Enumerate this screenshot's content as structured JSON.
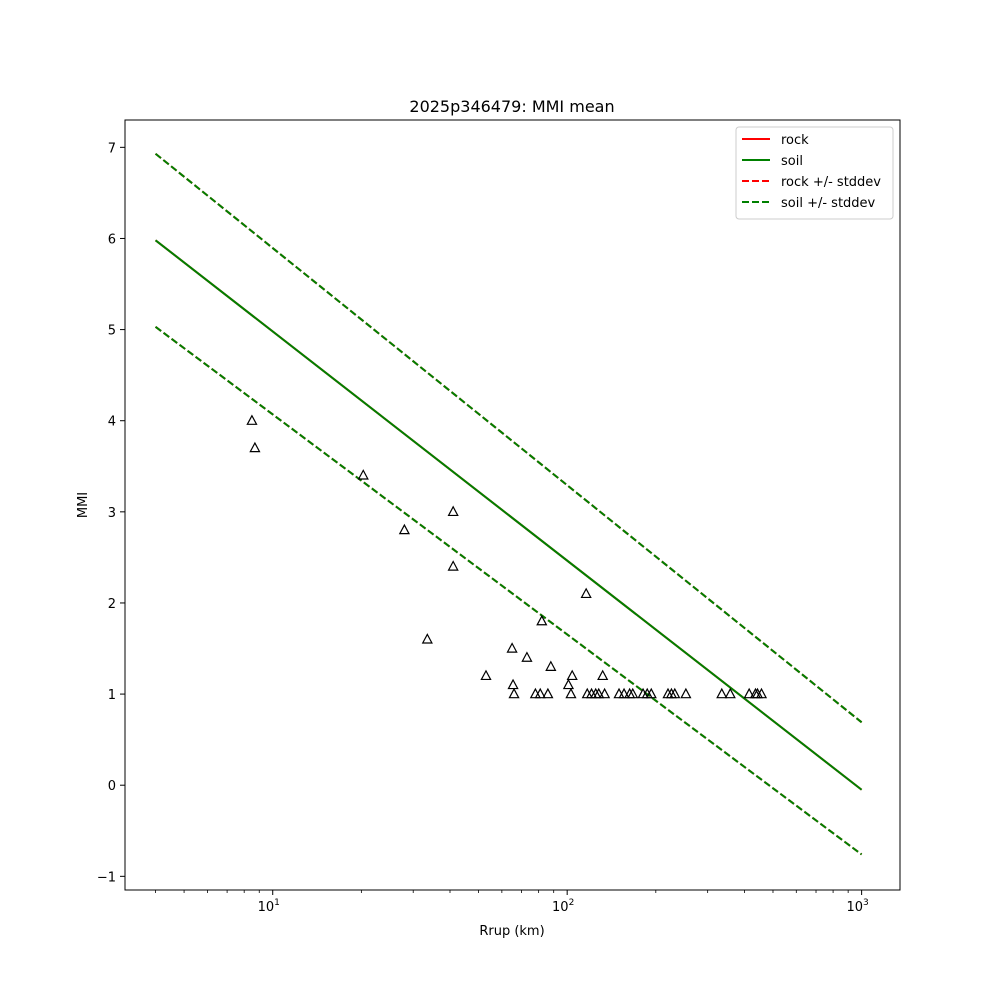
{
  "chart_data": {
    "type": "scatter",
    "title": "2025p346479: MMI mean",
    "xlabel": "Rrup (km)",
    "ylabel": "MMI",
    "xscale": "log",
    "xlim": [
      3.15,
      1350
    ],
    "ylim": [
      -1.15,
      7.3
    ],
    "x_major_ticks": [
      {
        "value": 10,
        "base": "10",
        "exp": "1"
      },
      {
        "value": 100,
        "base": "10",
        "exp": "2"
      },
      {
        "value": 1000,
        "base": "10",
        "exp": "3"
      }
    ],
    "y_ticks": [
      {
        "value": -1,
        "label": "−1"
      },
      {
        "value": 0,
        "label": "0"
      },
      {
        "value": 1,
        "label": "1"
      },
      {
        "value": 2,
        "label": "2"
      },
      {
        "value": 3,
        "label": "3"
      },
      {
        "value": 4,
        "label": "4"
      },
      {
        "value": 5,
        "label": "5"
      },
      {
        "value": 6,
        "label": "6"
      },
      {
        "value": 7,
        "label": "7"
      }
    ],
    "grid": false,
    "legend_position": "top-right",
    "series": [
      {
        "name": "rock",
        "style": "solid",
        "color": "#ff0000",
        "x": [
          4,
          1000
        ],
        "y": [
          5.98,
          -0.05
        ]
      },
      {
        "name": "soil",
        "style": "solid",
        "color": "#008000",
        "x": [
          4,
          1000
        ],
        "y": [
          5.98,
          -0.05
        ]
      },
      {
        "name": "rock +/- stddev",
        "style": "dashed",
        "color": "#ff0000",
        "lines": [
          {
            "x": [
              4,
              1000
            ],
            "y": [
              6.93,
              0.69
            ]
          },
          {
            "x": [
              4,
              1000
            ],
            "y": [
              5.03,
              -0.76
            ]
          }
        ]
      },
      {
        "name": "soil +/- stddev",
        "style": "dashed",
        "color": "#008000",
        "lines": [
          {
            "x": [
              4,
              1000
            ],
            "y": [
              6.93,
              0.69
            ]
          },
          {
            "x": [
              4,
              1000
            ],
            "y": [
              5.03,
              -0.76
            ]
          }
        ]
      }
    ],
    "observations": {
      "marker": "triangle",
      "color": "#000000",
      "points": [
        [
          8.5,
          4.0
        ],
        [
          8.7,
          3.7
        ],
        [
          20.3,
          3.4
        ],
        [
          28,
          2.8
        ],
        [
          33.5,
          1.6
        ],
        [
          41,
          3.0
        ],
        [
          41,
          2.4
        ],
        [
          53,
          1.2
        ],
        [
          65,
          1.5
        ],
        [
          65.5,
          1.1
        ],
        [
          66,
          1.0
        ],
        [
          73,
          1.4
        ],
        [
          78,
          1.0
        ],
        [
          81,
          1.0
        ],
        [
          82,
          1.8
        ],
        [
          86,
          1.0
        ],
        [
          88,
          1.3
        ],
        [
          101,
          1.1
        ],
        [
          103,
          1.0
        ],
        [
          104,
          1.2
        ],
        [
          116,
          2.1
        ],
        [
          117,
          1.0
        ],
        [
          121,
          1.0
        ],
        [
          125,
          1.0
        ],
        [
          128,
          1.0
        ],
        [
          132,
          1.2
        ],
        [
          134,
          1.0
        ],
        [
          150,
          1.0
        ],
        [
          156,
          1.0
        ],
        [
          163,
          1.0
        ],
        [
          167,
          1.0
        ],
        [
          181,
          1.0
        ],
        [
          187,
          1.0
        ],
        [
          193,
          1.0
        ],
        [
          220,
          1.0
        ],
        [
          226,
          1.0
        ],
        [
          232,
          1.0
        ],
        [
          253,
          1.0
        ],
        [
          335,
          1.0
        ],
        [
          358,
          1.0
        ],
        [
          415,
          1.0
        ],
        [
          436,
          1.0
        ],
        [
          443,
          1.0
        ],
        [
          457,
          1.0
        ]
      ]
    }
  }
}
